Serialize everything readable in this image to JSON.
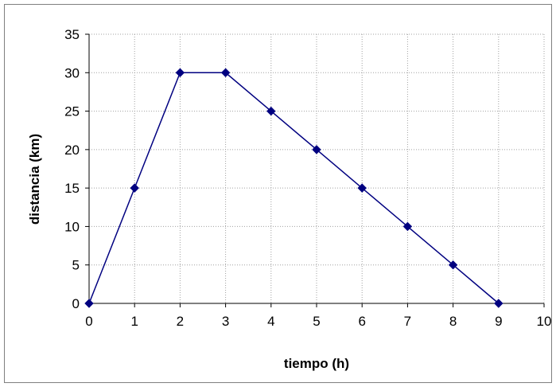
{
  "chart_data": {
    "type": "line",
    "title": "",
    "xlabel": "tiempo (h)",
    "ylabel": "distancia (km)",
    "xlim": [
      0,
      10
    ],
    "ylim": [
      0,
      35
    ],
    "x_ticks": [
      "0",
      "1",
      "2",
      "3",
      "4",
      "5",
      "6",
      "7",
      "8",
      "9",
      "10"
    ],
    "y_ticks": [
      "0",
      "5",
      "10",
      "15",
      "20",
      "25",
      "30",
      "35"
    ],
    "grid": true,
    "legend": "none",
    "series": [
      {
        "color": "#000080",
        "marker": "diamond",
        "x": [
          0,
          1,
          2,
          3,
          4,
          5,
          6,
          7,
          8,
          9
        ],
        "y": [
          0,
          15,
          30,
          30,
          25,
          20,
          15,
          10,
          5,
          0
        ]
      }
    ]
  }
}
